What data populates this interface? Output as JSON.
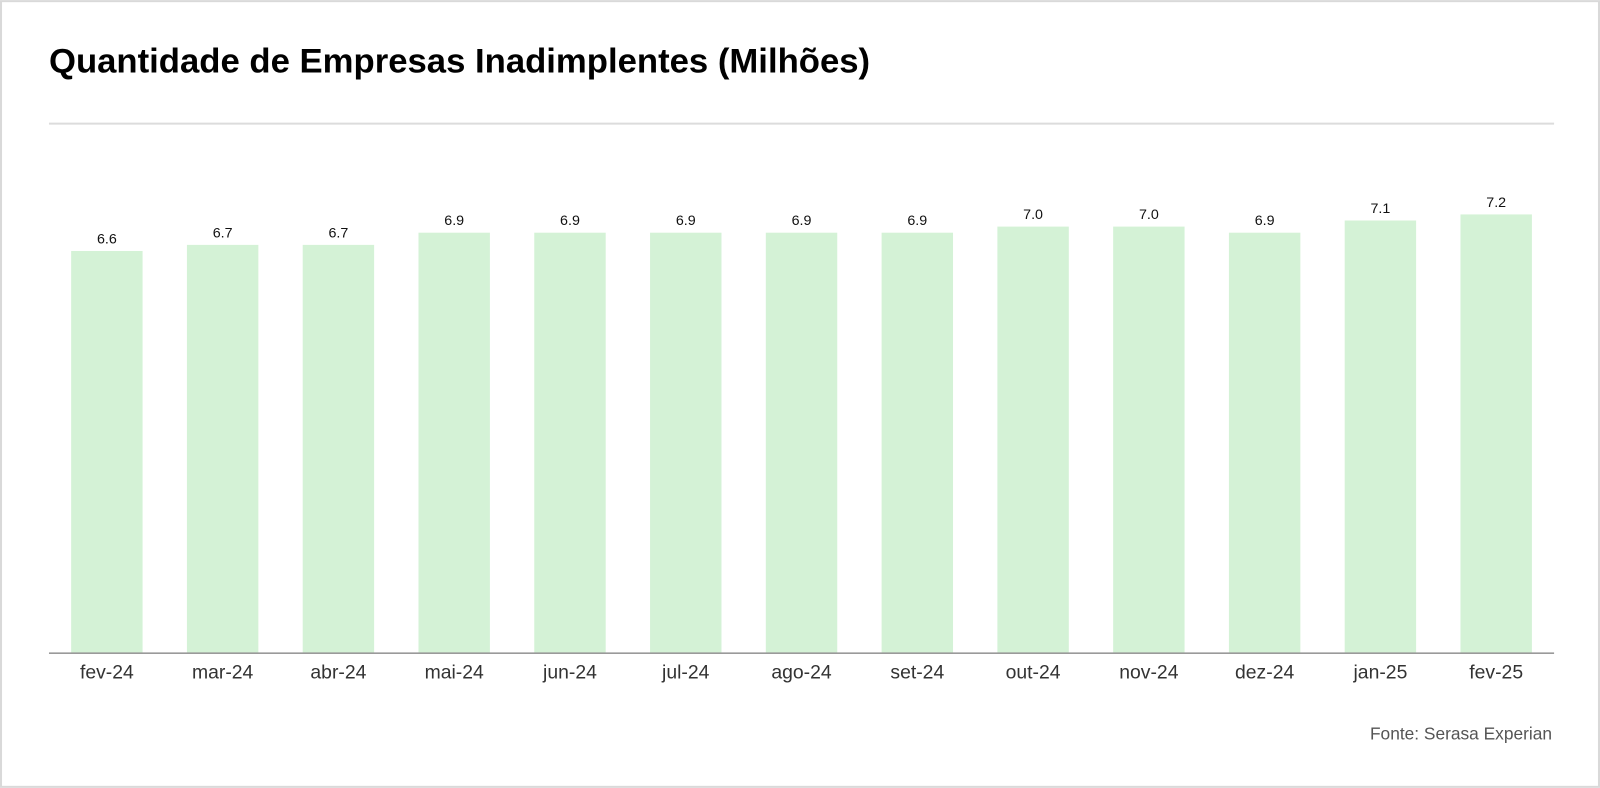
{
  "chart_data": {
    "type": "bar",
    "title": "Quantidade de Empresas Inadimplentes (Milhões)",
    "categories": [
      "fev-24",
      "mar-24",
      "abr-24",
      "mai-24",
      "jun-24",
      "jul-24",
      "ago-24",
      "set-24",
      "out-24",
      "nov-24",
      "dez-24",
      "jan-25",
      "fev-25"
    ],
    "values": [
      6.6,
      6.7,
      6.7,
      6.9,
      6.9,
      6.9,
      6.9,
      6.9,
      7.0,
      7.0,
      6.9,
      7.1,
      7.2
    ],
    "value_labels": [
      "6.6",
      "6.7",
      "6.7",
      "6.9",
      "6.9",
      "6.9",
      "6.9",
      "6.9",
      "7.0",
      "7.0",
      "6.9",
      "7.1",
      "7.2"
    ],
    "color": "#d4f2d6",
    "source": "Fonte: Serasa Experian"
  }
}
